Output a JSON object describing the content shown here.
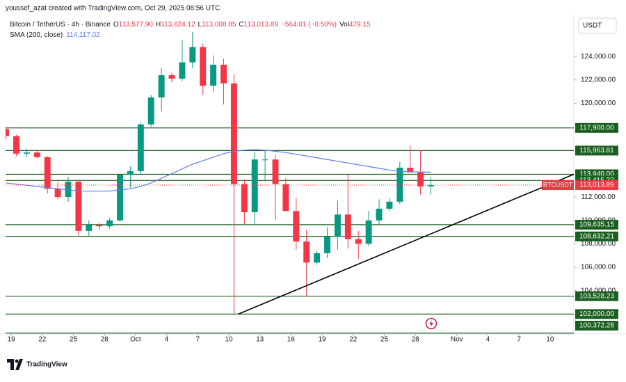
{
  "header": "youssef_azat created with TradingView.com, Oct 29, 2025 08:56 UTC",
  "legend": {
    "symbol": "Bitcoin / TetherUS · 4h · Binance",
    "fields": [
      {
        "label": "O",
        "value": "113,577.90"
      },
      {
        "label": "H",
        "value": "113,624.12"
      },
      {
        "label": "L",
        "value": "113,008.85"
      },
      {
        "label": "C",
        "value": "113,013.89"
      }
    ],
    "change": "−564.01 (−0.50%)",
    "volume_label": "Vol",
    "volume": "479.15",
    "indicator": "SMA (200, close)",
    "indicator_value": "114,117.02"
  },
  "currency": "USDT",
  "logo": "TradingView",
  "chart_data": {
    "type": "candlestick",
    "x": [
      "2025-09-18",
      "2025-09-19",
      "2025-09-20",
      "2025-09-21",
      "2025-09-22",
      "2025-09-23",
      "2025-09-24",
      "2025-09-25",
      "2025-09-26",
      "2025-09-27",
      "2025-09-28",
      "2025-09-29",
      "2025-09-30",
      "2025-10-01",
      "2025-10-02",
      "2025-10-03",
      "2025-10-04",
      "2025-10-05",
      "2025-10-06",
      "2025-10-07",
      "2025-10-08",
      "2025-10-09",
      "2025-10-10",
      "2025-10-11",
      "2025-10-12",
      "2025-10-13",
      "2025-10-14",
      "2025-10-15",
      "2025-10-16",
      "2025-10-17",
      "2025-10-18",
      "2025-10-19",
      "2025-10-20",
      "2025-10-21",
      "2025-10-22",
      "2025-10-23",
      "2025-10-24",
      "2025-10-25",
      "2025-10-26",
      "2025-10-27",
      "2025-10-28",
      "2025-10-29"
    ],
    "open": [
      117800,
      117200,
      115700,
      115800,
      115400,
      112700,
      112000,
      113300,
      109100,
      109600,
      109500,
      110000,
      113900,
      114200,
      118200,
      120500,
      122400,
      122100,
      123500,
      124800,
      121500,
      123300,
      121700,
      113100,
      110700,
      115200,
      115200,
      113100,
      110800,
      108200,
      106400,
      107200,
      108600,
      110500,
      108400,
      108000,
      110000,
      111000,
      111600,
      114500,
      114100,
      112900
    ],
    "high": [
      118000,
      117300,
      116100,
      116000,
      115500,
      113300,
      113700,
      113400,
      110000,
      109800,
      110200,
      114000,
      114600,
      118400,
      120700,
      123000,
      122600,
      125400,
      126100,
      125100,
      124100,
      123800,
      122500,
      113500,
      115900,
      116000,
      115600,
      113600,
      111900,
      109200,
      107400,
      109400,
      111700,
      113900,
      109100,
      110800,
      111800,
      111900,
      115000,
      116400,
      116000,
      113700
    ],
    "low": [
      116900,
      115500,
      115400,
      115300,
      112300,
      111800,
      111600,
      108700,
      108600,
      109200,
      109300,
      109900,
      112800,
      113900,
      118000,
      119300,
      121800,
      121900,
      123000,
      120700,
      121000,
      119900,
      102000,
      109700,
      109600,
      113400,
      110000,
      110800,
      107500,
      103500,
      106200,
      106800,
      107500,
      107600,
      106700,
      107800,
      109700,
      110800,
      111400,
      114100,
      112200,
      112200
    ],
    "close": [
      117200,
      115700,
      115800,
      115400,
      112700,
      112000,
      113300,
      109100,
      109600,
      109500,
      110000,
      113900,
      114200,
      118200,
      120500,
      122400,
      122100,
      123500,
      124800,
      121500,
      123300,
      121700,
      113100,
      110700,
      115200,
      115200,
      113100,
      110800,
      108200,
      106400,
      107200,
      108600,
      110500,
      108400,
      108000,
      110000,
      111000,
      111600,
      114500,
      114100,
      112900,
      113013.89
    ],
    "up_color": "#089981",
    "down_color": "#f23645",
    "sma": {
      "color": "#5b7cf0",
      "values": [
        113200,
        113100,
        113000,
        112900,
        112800,
        112700,
        112600,
        112500,
        112500,
        112500,
        112500,
        112600,
        112700,
        112900,
        113200,
        113600,
        114000,
        114400,
        114800,
        115100,
        115400,
        115700,
        115900,
        116000,
        116050,
        116000,
        115900,
        115800,
        115650,
        115500,
        115350,
        115200,
        115050,
        114900,
        114750,
        114600,
        114450,
        114300,
        114200,
        114150,
        114130,
        114117.02
      ]
    },
    "levels": [
      {
        "value": 117900,
        "label": "117,900.00"
      },
      {
        "value": 115963.81,
        "label": "115,963.81"
      },
      {
        "value": 113940,
        "label": "113,940.00"
      },
      {
        "value": 113415.22,
        "label": "113,415.22"
      },
      {
        "value": 109635.15,
        "label": "109,635.15"
      },
      {
        "value": 108632.21,
        "label": "108,632.21"
      },
      {
        "value": 103528.23,
        "label": "103,528.23"
      },
      {
        "value": 102000,
        "label": "102,000.00"
      },
      {
        "value": 100372.26,
        "label": "100,372.26"
      }
    ],
    "level_color": "#1b5e20",
    "trendline": {
      "x": [
        "2025-10-10T22:00",
        "2025-11-12T07:00"
      ],
      "y": [
        102000,
        113940
      ],
      "color": "#000000"
    },
    "last_price": {
      "value": 113013.89,
      "label": "113,013.89",
      "tag": "BTCUSDT",
      "color": "#f23645"
    },
    "xlim": [
      "2025-09-18T11:00",
      "2025-11-12T07:00"
    ],
    "ylim": [
      100300,
      126150
    ],
    "yticks": [
      {
        "value": 104000,
        "label": "104,000.00"
      },
      {
        "value": 106000,
        "label": "106,000.00"
      },
      {
        "value": 108000,
        "label": "108,000.00"
      },
      {
        "value": 110000,
        "label": "110,000.00"
      },
      {
        "value": 112000,
        "label": "112,000.00"
      },
      {
        "value": 120000,
        "label": "120,000.00"
      },
      {
        "value": 122000,
        "label": "122,000.00"
      },
      {
        "value": 124000,
        "label": "124,000.00"
      }
    ],
    "xticks": [
      {
        "value": "2025-09-19",
        "label": "19"
      },
      {
        "value": "2025-09-22",
        "label": "22"
      },
      {
        "value": "2025-09-25",
        "label": "25"
      },
      {
        "value": "2025-09-28",
        "label": "28"
      },
      {
        "value": "2025-10-01",
        "label": "Oct"
      },
      {
        "value": "2025-10-04",
        "label": "4"
      },
      {
        "value": "2025-10-07",
        "label": "7"
      },
      {
        "value": "2025-10-10",
        "label": "10"
      },
      {
        "value": "2025-10-13",
        "label": "13"
      },
      {
        "value": "2025-10-16",
        "label": "16"
      },
      {
        "value": "2025-10-19",
        "label": "19"
      },
      {
        "value": "2025-10-22",
        "label": "22"
      },
      {
        "value": "2025-10-25",
        "label": "25"
      },
      {
        "value": "2025-10-28",
        "label": "28"
      },
      {
        "value": "2025-11-01",
        "label": "Nov"
      },
      {
        "value": "2025-11-04",
        "label": "4"
      },
      {
        "value": "2025-11-07",
        "label": "7"
      },
      {
        "value": "2025-11-10",
        "label": "10"
      }
    ]
  }
}
